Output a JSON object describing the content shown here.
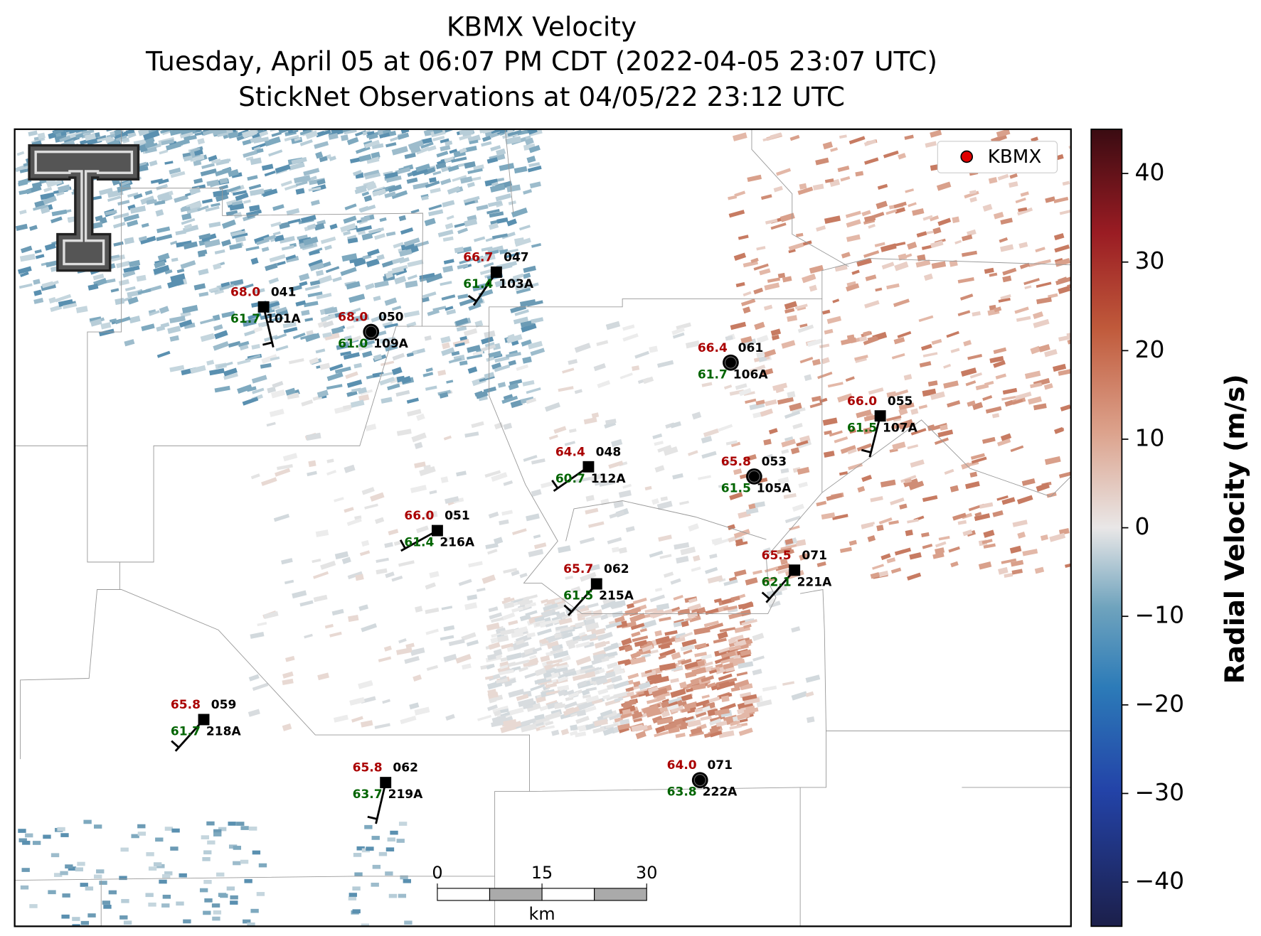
{
  "title": [
    "KBMX Velocity",
    "Tuesday, April 05 at 06:07 PM CDT (2022-04-05 23:07 UTC)",
    "StickNet Observations at 04/05/22 23:12 UTC"
  ],
  "legend": {
    "label": "KBMX"
  },
  "colorbar": {
    "label": "Radial Velocity (m/s)",
    "lim": [
      -45,
      45
    ],
    "ticks": [
      {
        "value": -40,
        "label": "−40"
      },
      {
        "value": -30,
        "label": "−30"
      },
      {
        "value": -20,
        "label": "−20"
      },
      {
        "value": -10,
        "label": "−10"
      },
      0,
      10,
      20,
      30,
      40
    ]
  },
  "scale_bar": {
    "ticks": [
      0,
      15,
      30
    ],
    "unit": "km"
  },
  "stations": [
    {
      "temperature": "68.0",
      "dewpoint": "61.7",
      "number": "041",
      "id": "101A"
    },
    {
      "temperature": "68.0",
      "dewpoint": "61.0",
      "number": "050",
      "id": "109A"
    },
    {
      "temperature": "66.7",
      "dewpoint": "61.4",
      "number": "047",
      "id": "103A"
    },
    {
      "temperature": "66.4",
      "dewpoint": "61.7",
      "number": "061",
      "id": "106A"
    },
    {
      "temperature": "66.0",
      "dewpoint": "61.5",
      "number": "055",
      "id": "107A"
    },
    {
      "temperature": "64.4",
      "dewpoint": "60.7",
      "number": "048",
      "id": "112A"
    },
    {
      "temperature": "65.8",
      "dewpoint": "61.5",
      "number": "053",
      "id": "105A"
    },
    {
      "temperature": "66.0",
      "dewpoint": "61.4",
      "number": "051",
      "id": "216A"
    },
    {
      "temperature": "65.7",
      "dewpoint": "61.5",
      "number": "062",
      "id": "215A"
    },
    {
      "temperature": "65.5",
      "dewpoint": "62.1",
      "number": "071",
      "id": "221A"
    },
    {
      "temperature": "65.8",
      "dewpoint": "61.7",
      "number": "059",
      "id": "218A"
    },
    {
      "temperature": "65.8",
      "dewpoint": "63.7",
      "number": "062",
      "id": "219A"
    },
    {
      "temperature": "64.0",
      "dewpoint": "63.8",
      "number": "071",
      "id": "222A"
    }
  ]
}
